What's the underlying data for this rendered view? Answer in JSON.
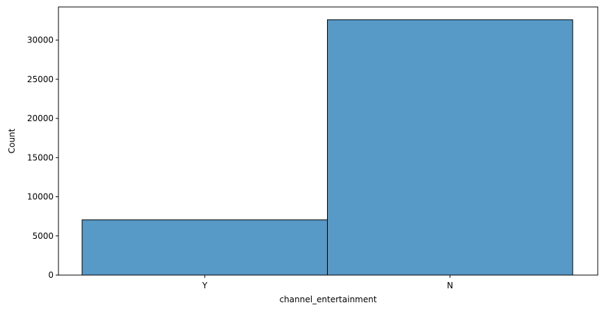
{
  "chart_data": {
    "type": "bar",
    "categories": [
      "Y",
      "N"
    ],
    "values": [
      7050,
      32600
    ],
    "title": "",
    "xlabel": "channel_entertainment",
    "ylabel": "Count",
    "ylim": [
      0,
      34230
    ],
    "yticks": [
      0,
      5000,
      10000,
      15000,
      20000,
      25000,
      30000
    ],
    "grid": false,
    "legend": "none",
    "colors": {
      "bar_fill": "#5799c7",
      "bar_edge": "#000000",
      "axis": "#000000"
    }
  }
}
